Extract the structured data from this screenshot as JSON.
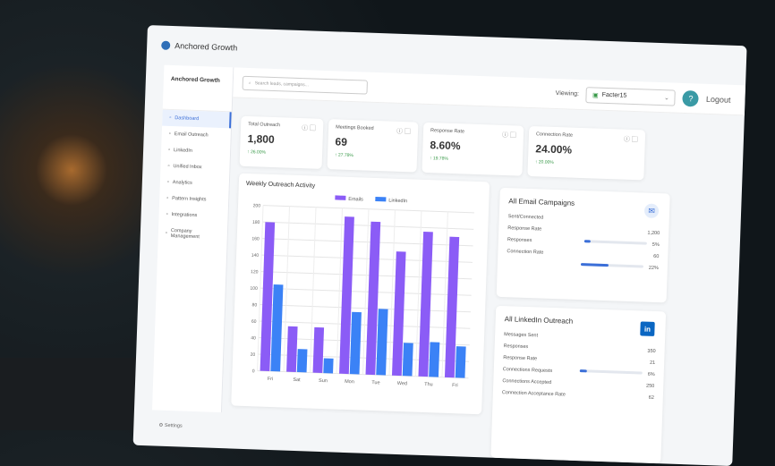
{
  "app": {
    "brand": "Anchored Growth"
  },
  "sidebar": {
    "title": "Anchored Growth",
    "items": [
      {
        "label": "Dashboard",
        "icon": "chart-icon",
        "active": true
      },
      {
        "label": "Email Outreach",
        "icon": "mail-icon"
      },
      {
        "label": "LinkedIn",
        "icon": "linkedin-icon"
      },
      {
        "label": "Unified Inbox",
        "icon": "inbox-icon"
      },
      {
        "label": "Analytics",
        "icon": "analytics-icon"
      },
      {
        "label": "Pattern Insights",
        "icon": "bulb-icon"
      },
      {
        "label": "Integrations",
        "icon": "plug-icon"
      },
      {
        "label": "Company Management",
        "icon": "building-icon"
      }
    ],
    "settings": "Settings"
  },
  "topbar": {
    "search_placeholder": "Search leads, campaigns...",
    "viewing_label": "Viewing:",
    "viewing_value": "Facter15",
    "logout": "Logout"
  },
  "stats": [
    {
      "label": "Total Outreach",
      "value": "1,800",
      "change": "26.00%",
      "icon": "mail-icon"
    },
    {
      "label": "Meetings Booked",
      "value": "69",
      "change": "27.78%",
      "icon": "calendar-icon"
    },
    {
      "label": "Response Rate",
      "value": "8.60%",
      "change": "19.78%",
      "icon": "trend-icon"
    },
    {
      "label": "Connection Rate",
      "value": "24.00%",
      "change": "20.00%",
      "icon": "users-icon"
    }
  ],
  "colors": {
    "emails": "#8b5cf6",
    "linkedin": "#3b82f6",
    "accent": "#3a9aa5",
    "positive": "#3a9a4a"
  },
  "chart_data": {
    "type": "bar",
    "title": "Weekly Outreach Activity",
    "categories": [
      "Fri",
      "Sat",
      "Sun",
      "Mon",
      "Tue",
      "Wed",
      "Thu",
      "Fri"
    ],
    "series": [
      {
        "name": "Emails",
        "values": [
          180,
          55,
          55,
          190,
          185,
          150,
          175,
          170
        ]
      },
      {
        "name": "LinkedIn",
        "values": [
          105,
          28,
          18,
          75,
          80,
          40,
          42,
          38
        ]
      }
    ],
    "ylim": [
      0,
      200
    ],
    "yticks": [
      0,
      20,
      40,
      60,
      80,
      100,
      120,
      140,
      160,
      180,
      200
    ],
    "grid": true,
    "legend": "top"
  },
  "email": {
    "title": "All Email Campaigns",
    "rows": [
      {
        "label": "Sent/Connected",
        "value": ""
      },
      {
        "label": "Response Rate",
        "value": "1,200"
      },
      {
        "label": "Responses",
        "value": "5%",
        "progress": 5
      },
      {
        "label": "Connection Rate",
        "value": "60"
      },
      {
        "label": "",
        "value": "22%",
        "progress": 22
      }
    ]
  },
  "linkedin": {
    "title": "All LinkedIn Outreach",
    "rows": [
      {
        "label": "Messages Sent",
        "value": ""
      },
      {
        "label": "Responses",
        "value": "350"
      },
      {
        "label": "Response Rate",
        "value": "21"
      },
      {
        "label": "Connections Requests",
        "value": "6%",
        "progress": 6
      },
      {
        "label": "Connections Accepted",
        "value": "250"
      },
      {
        "label": "Connection Acceptance Rate",
        "value": "62"
      }
    ]
  }
}
